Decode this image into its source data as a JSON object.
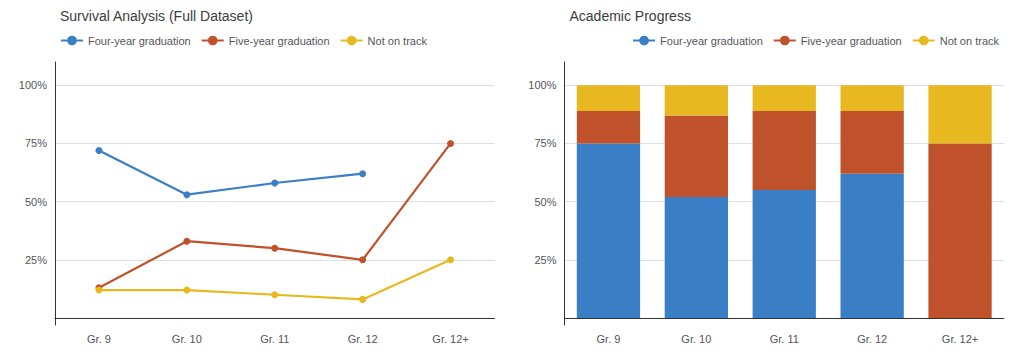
{
  "chart_data": [
    {
      "type": "line",
      "title": "Survival Analysis (Full Dataset)",
      "categories": [
        "Gr. 9",
        "Gr. 10",
        "Gr. 11",
        "Gr. 12",
        "Gr. 12+"
      ],
      "series": [
        {
          "name": "Four-year graduation",
          "color": "#3A7EC6",
          "values": [
            0.72,
            0.53,
            0.58,
            0.62,
            null
          ]
        },
        {
          "name": "Five-year graduation",
          "color": "#C0522B",
          "values": [
            0.13,
            0.33,
            0.3,
            0.25,
            0.75
          ]
        },
        {
          "name": "Not on track",
          "color": "#E8B820",
          "values": [
            0.12,
            0.12,
            0.1,
            0.08,
            0.25
          ]
        }
      ],
      "ylim": [
        -0.03,
        1.1
      ],
      "yticks": [
        {
          "value": 0.25,
          "label": "25%"
        },
        {
          "value": 0.5,
          "label": "50%"
        },
        {
          "value": 0.75,
          "label": "75%"
        },
        {
          "value": 1.0,
          "label": "100%"
        }
      ],
      "grid": true,
      "legend": "upper left",
      "marker": "circle"
    },
    {
      "type": "bar",
      "title": "Academic Progress",
      "categories": [
        "Gr. 9",
        "Gr. 10",
        "Gr. 11",
        "Gr. 12",
        "Gr. 12+"
      ],
      "series": [
        {
          "name": "Four-year graduation",
          "color": "#3A7EC6",
          "values": [
            0.75,
            0.52,
            0.55,
            0.62,
            0.0
          ]
        },
        {
          "name": "Five-year graduation",
          "color": "#C0522B",
          "values": [
            0.14,
            0.35,
            0.34,
            0.27,
            0.75
          ]
        },
        {
          "name": "Not on track",
          "color": "#E8B820",
          "values": [
            0.11,
            0.13,
            0.11,
            0.11,
            0.25
          ]
        }
      ],
      "ylim": [
        -0.03,
        1.1
      ],
      "yticks": [
        {
          "value": 0.25,
          "label": "25%"
        },
        {
          "value": 0.5,
          "label": "50%"
        },
        {
          "value": 0.75,
          "label": "75%"
        },
        {
          "value": 1.0,
          "label": "100%"
        }
      ],
      "grid": true,
      "legend": "upper right",
      "stacked": true
    }
  ]
}
